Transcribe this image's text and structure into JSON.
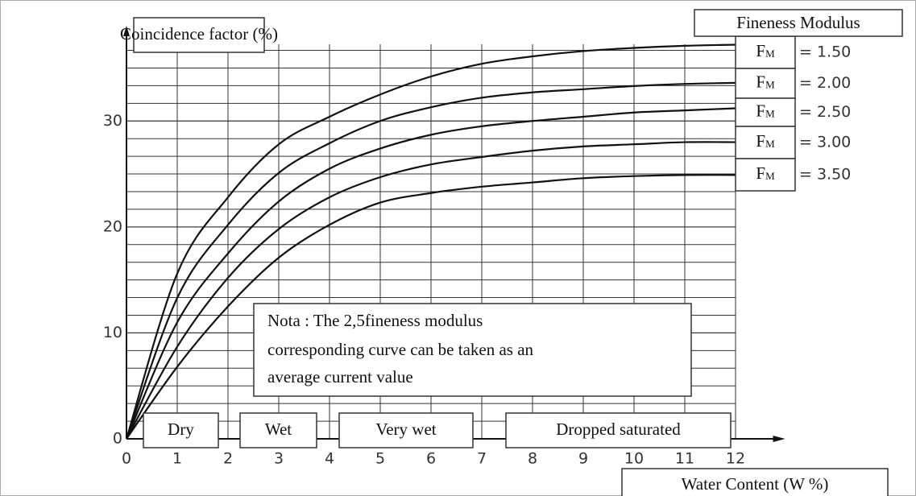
{
  "chart_data": {
    "type": "line",
    "ylabel": "Coincidence factor (%)",
    "xlabel": "Water Content (W %)",
    "legend_title": "Fineness Modulus",
    "legend_symbol": {
      "main": "F",
      "sub": "M"
    },
    "x": [
      0,
      1,
      2,
      3,
      4,
      5,
      6,
      7,
      8,
      9,
      10,
      11,
      12
    ],
    "series": [
      {
        "name": "= 1.50",
        "color": "#111111",
        "values": [
          0,
          15.6,
          22.8,
          27.8,
          30.4,
          32.5,
          34.2,
          35.4,
          36.1,
          36.6,
          36.9,
          37.1,
          37.2
        ]
      },
      {
        "name": "= 2.00",
        "color": "#111111",
        "values": [
          0,
          13.3,
          20.2,
          25.1,
          27.9,
          30.0,
          31.3,
          32.2,
          32.7,
          33.0,
          33.3,
          33.5,
          33.6
        ]
      },
      {
        "name": "= 2.50",
        "color": "#111111",
        "values": [
          0,
          11.0,
          17.5,
          22.4,
          25.5,
          27.4,
          28.7,
          29.5,
          30.0,
          30.4,
          30.8,
          31.0,
          31.2
        ]
      },
      {
        "name": "= 3.00",
        "color": "#111111",
        "values": [
          0,
          8.7,
          15.2,
          19.8,
          22.8,
          24.7,
          25.9,
          26.6,
          27.2,
          27.6,
          27.8,
          28.0,
          28.0
        ]
      },
      {
        "name": "= 3.50",
        "color": "#111111",
        "values": [
          0,
          6.8,
          12.5,
          17.1,
          20.2,
          22.3,
          23.2,
          23.8,
          24.2,
          24.6,
          24.8,
          24.9,
          24.9
        ]
      }
    ],
    "xlim": [
      0,
      12.5
    ],
    "ylim": [
      0,
      38
    ],
    "xticks": [
      0,
      1,
      2,
      3,
      4,
      5,
      6,
      7,
      8,
      9,
      10,
      11,
      12
    ],
    "yticks": [
      0,
      10,
      20,
      30
    ],
    "grid": true,
    "note": [
      "Nota : The 2,5fineness modulus",
      "corresponding curve can be taken as an",
      "average current value"
    ],
    "zones": [
      "Dry",
      "Wet",
      "Very wet",
      "Dropped saturated"
    ]
  }
}
